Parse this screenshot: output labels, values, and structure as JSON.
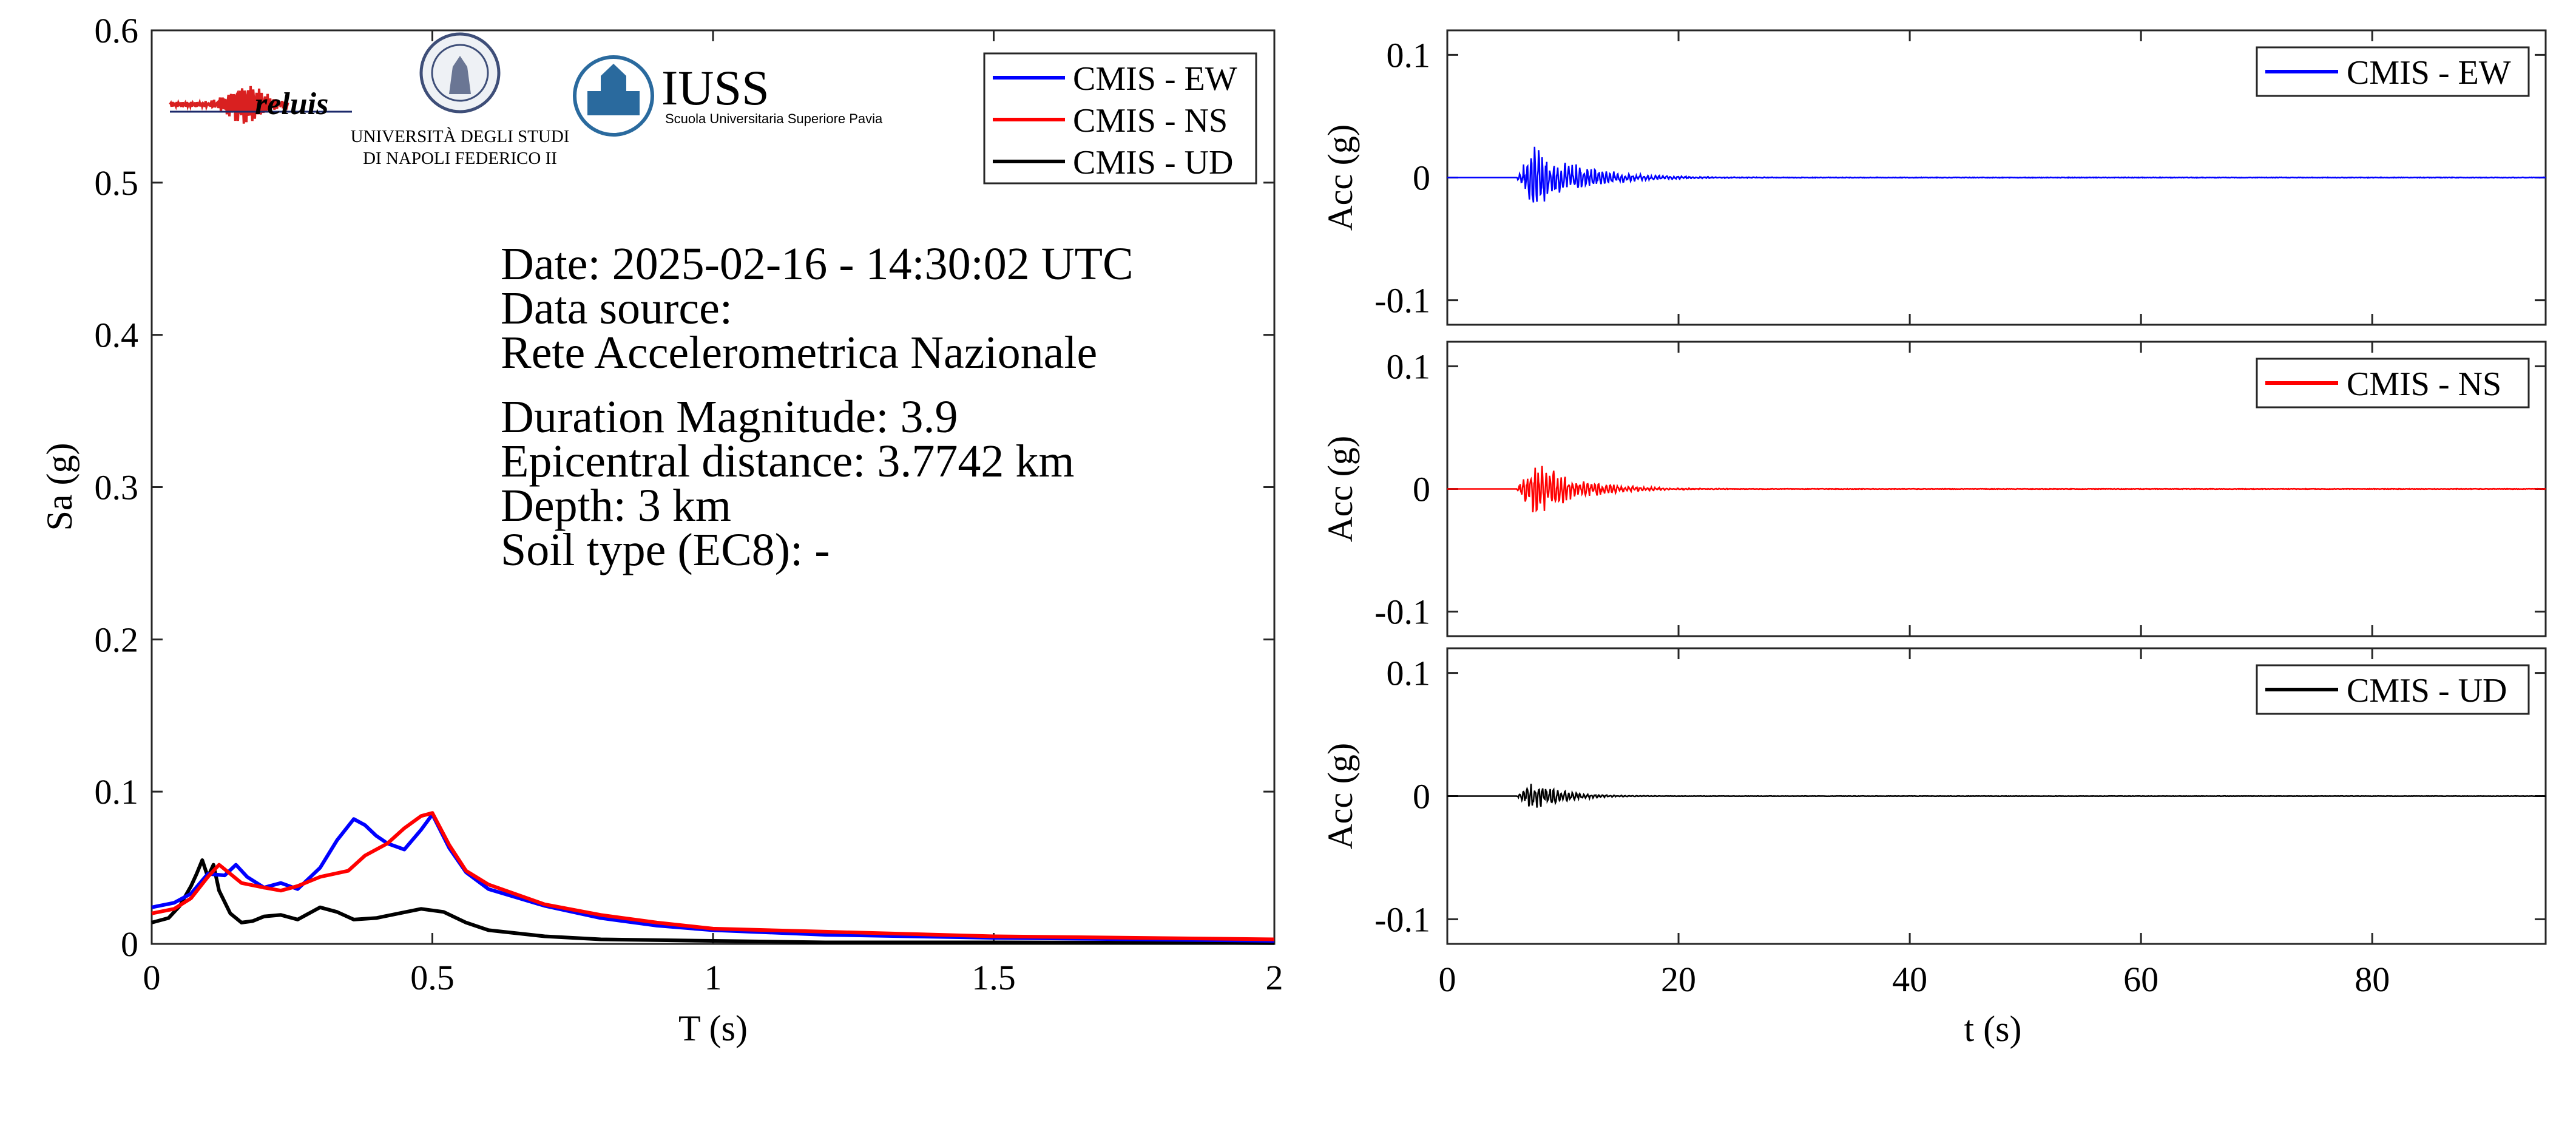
{
  "logos": {
    "reluis": "reluis",
    "unina_line1": "UNIVERSITÀ DEGLI STUDI",
    "unina_line2": "DI NAPOLI FEDERICO II",
    "iuss": "IUSS",
    "iuss_sub": "Scuola Universitaria Superiore Pavia"
  },
  "info": {
    "date": "Date: 2025-02-16 - 14:30:02 UTC",
    "source_label": "Data source:",
    "source": "Rete Accelerometrica Nazionale",
    "magnitude": "Duration Magnitude: 3.9",
    "distance": "Epicentral distance: 3.7742 km",
    "depth": "Depth: 3 km",
    "soil": "Soil type (EC8): -"
  },
  "colors": {
    "EW": "#0000ff",
    "NS": "#ff0000",
    "UD": "#000000"
  },
  "chart_data": [
    {
      "type": "line",
      "xlabel": "T (s)",
      "ylabel": "Sa (g)",
      "xlim": [
        0,
        2
      ],
      "ylim": [
        0,
        0.6
      ],
      "xticks": [
        0,
        0.5,
        1,
        1.5,
        2
      ],
      "xtick_labels": [
        "0",
        "0.5",
        "1",
        "1.5",
        "2"
      ],
      "yticks": [
        0,
        0.1,
        0.2,
        0.3,
        0.4,
        0.5,
        0.6
      ],
      "ytick_labels": [
        "0",
        "0.1",
        "0.2",
        "0.3",
        "0.4",
        "0.5",
        "0.6"
      ],
      "legend_position": "top-right",
      "series": [
        {
          "name": "CMIS - EW",
          "x": [
            0,
            0.04,
            0.07,
            0.1,
            0.13,
            0.15,
            0.17,
            0.2,
            0.23,
            0.26,
            0.3,
            0.33,
            0.36,
            0.38,
            0.4,
            0.42,
            0.45,
            0.48,
            0.5,
            0.53,
            0.56,
            0.6,
            0.7,
            0.8,
            0.9,
            1.0,
            1.2,
            1.5,
            2.0
          ],
          "y": [
            0.024,
            0.027,
            0.033,
            0.046,
            0.045,
            0.052,
            0.044,
            0.037,
            0.04,
            0.036,
            0.05,
            0.068,
            0.082,
            0.078,
            0.071,
            0.066,
            0.062,
            0.075,
            0.085,
            0.063,
            0.047,
            0.036,
            0.025,
            0.017,
            0.012,
            0.009,
            0.006,
            0.004,
            0.002
          ]
        },
        {
          "name": "CMIS - NS",
          "x": [
            0,
            0.04,
            0.07,
            0.1,
            0.12,
            0.14,
            0.16,
            0.2,
            0.23,
            0.26,
            0.3,
            0.35,
            0.38,
            0.42,
            0.45,
            0.48,
            0.5,
            0.53,
            0.56,
            0.6,
            0.7,
            0.8,
            0.9,
            1.0,
            1.2,
            1.5,
            2.0
          ],
          "y": [
            0.02,
            0.023,
            0.03,
            0.044,
            0.052,
            0.046,
            0.04,
            0.037,
            0.035,
            0.038,
            0.044,
            0.048,
            0.058,
            0.066,
            0.076,
            0.084,
            0.086,
            0.065,
            0.048,
            0.039,
            0.026,
            0.019,
            0.014,
            0.01,
            0.008,
            0.005,
            0.003
          ]
        },
        {
          "name": "CMIS - UD",
          "x": [
            0,
            0.03,
            0.05,
            0.07,
            0.08,
            0.09,
            0.1,
            0.11,
            0.12,
            0.14,
            0.16,
            0.18,
            0.2,
            0.23,
            0.26,
            0.3,
            0.33,
            0.36,
            0.4,
            0.44,
            0.48,
            0.52,
            0.56,
            0.6,
            0.7,
            0.8,
            1.0,
            1.2,
            1.5,
            2.0
          ],
          "y": [
            0.014,
            0.017,
            0.025,
            0.038,
            0.046,
            0.055,
            0.044,
            0.052,
            0.035,
            0.02,
            0.014,
            0.015,
            0.018,
            0.019,
            0.016,
            0.024,
            0.021,
            0.016,
            0.017,
            0.02,
            0.023,
            0.021,
            0.014,
            0.009,
            0.005,
            0.003,
            0.002,
            0.001,
            0.001,
            0.0005
          ]
        }
      ]
    },
    {
      "type": "line",
      "xlim": [
        0,
        95
      ],
      "ylim": [
        -0.12,
        0.12
      ],
      "ylabel": "Acc (g)",
      "yticks": [
        -0.1,
        0,
        0.1
      ],
      "ytick_labels": [
        "-0.1",
        "0",
        "0.1"
      ],
      "xticks": [
        0,
        20,
        40,
        60,
        80
      ],
      "legend_position": "top-right",
      "series": [
        {
          "name": "CMIS - EW",
          "onset_s": 6,
          "peak_g": 0.024,
          "coda_end_s": 26
        }
      ]
    },
    {
      "type": "line",
      "xlim": [
        0,
        95
      ],
      "ylim": [
        -0.12,
        0.12
      ],
      "ylabel": "Acc (g)",
      "yticks": [
        -0.1,
        0,
        0.1
      ],
      "ytick_labels": [
        "-0.1",
        "0",
        "0.1"
      ],
      "xticks": [
        0,
        20,
        40,
        60,
        80
      ],
      "legend_position": "top-right",
      "series": [
        {
          "name": "CMIS - NS",
          "onset_s": 6,
          "peak_g": 0.021,
          "coda_end_s": 24
        }
      ]
    },
    {
      "type": "line",
      "xlabel": "t (s)",
      "xlim": [
        0,
        95
      ],
      "ylim": [
        -0.12,
        0.12
      ],
      "ylabel": "Acc (g)",
      "yticks": [
        -0.1,
        0,
        0.1
      ],
      "ytick_labels": [
        "-0.1",
        "0",
        "0.1"
      ],
      "xticks": [
        0,
        20,
        40,
        60,
        80
      ],
      "xtick_labels": [
        "0",
        "20",
        "40",
        "60",
        "80"
      ],
      "legend_position": "top-right",
      "series": [
        {
          "name": "CMIS - UD",
          "onset_s": 6,
          "peak_g": 0.012,
          "coda_end_s": 18
        }
      ]
    }
  ]
}
